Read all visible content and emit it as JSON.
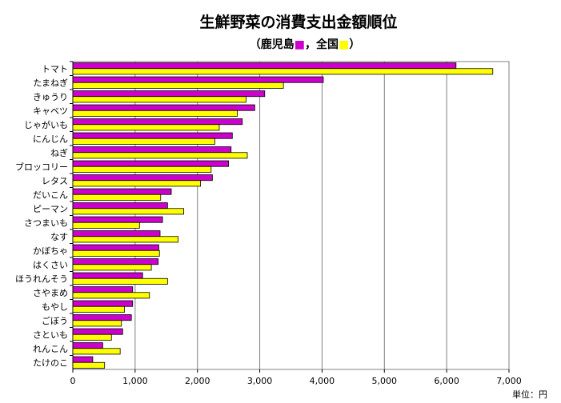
{
  "chart_data": {
    "type": "bar",
    "orientation": "horizontal",
    "title": "生鮮野菜の消費支出金額順位",
    "subtitle": {
      "open": "（",
      "series1_label": "鹿児島",
      "separator": "，",
      "series2_label": "全国",
      "close": "）"
    },
    "unit_label": "単位：円",
    "categories": [
      "トマト",
      "たまねぎ",
      "きゅうり",
      "キャベツ",
      "じゃがいも",
      "にんじん",
      "ねぎ",
      "ブロッコリー",
      "レタス",
      "だいこん",
      "ピーマン",
      "さつまいも",
      "なす",
      "かぼちゃ",
      "はくさい",
      "ほうれんそう",
      "さやまめ",
      "もやし",
      "ごぼう",
      "さといも",
      "れんこん",
      "たけのこ"
    ],
    "series": [
      {
        "name": "鹿児島",
        "color": "#cc00cc",
        "values": [
          6150,
          4020,
          3080,
          2920,
          2720,
          2560,
          2540,
          2500,
          2240,
          1580,
          1520,
          1440,
          1400,
          1380,
          1370,
          1120,
          960,
          960,
          940,
          800,
          480,
          320
        ]
      },
      {
        "name": "全国",
        "color": "#ffff00",
        "values": [
          6740,
          3380,
          2780,
          2640,
          2350,
          2280,
          2800,
          2220,
          2050,
          1410,
          1780,
          1070,
          1690,
          1390,
          1260,
          1520,
          1230,
          830,
          780,
          620,
          760,
          510
        ]
      }
    ],
    "xlim": [
      0,
      7000
    ],
    "xticks": [
      0,
      1000,
      2000,
      3000,
      4000,
      5000,
      6000,
      7000
    ],
    "xtick_labels": [
      "0",
      "1,000",
      "2,000",
      "3,000",
      "4,000",
      "5,000",
      "6,000",
      "7,000"
    ],
    "grid": "vertical"
  }
}
